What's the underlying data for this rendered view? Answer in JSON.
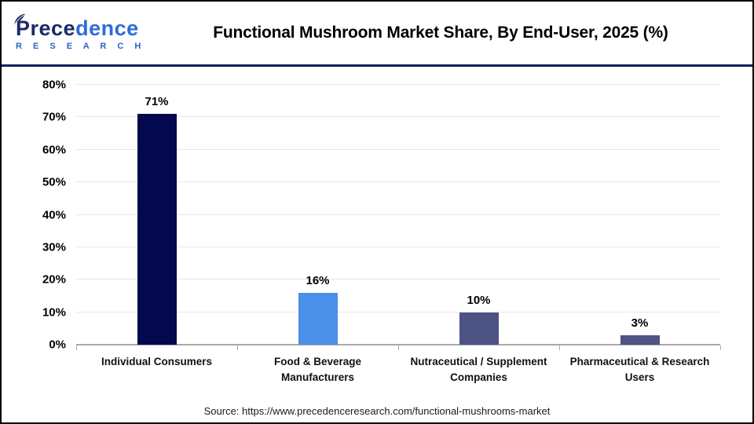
{
  "header": {
    "logo": {
      "brand_dark": "Prece",
      "brand_light": "dence",
      "sub": "R E S E A R C H"
    },
    "title": "Functional Mushroom Market Share, By End-User, 2025 (%)"
  },
  "chart_data": {
    "type": "bar",
    "title": "Functional Mushroom Market Share, By End-User, 2025 (%)",
    "categories": [
      "Individual Consumers",
      "Food & Beverage Manufacturers",
      "Nutraceutical / Supplement Companies",
      "Pharmaceutical & Research Users"
    ],
    "values": [
      71,
      16,
      10,
      3
    ],
    "value_labels": [
      "71%",
      "16%",
      "10%",
      "3%"
    ],
    "bar_colors": [
      "#04094f",
      "#4a90e8",
      "#4d5385",
      "#4d5385"
    ],
    "xlabel": "",
    "ylabel": "",
    "ylim": [
      0,
      80
    ],
    "yticks": [
      0,
      10,
      20,
      30,
      40,
      50,
      60,
      70,
      80
    ],
    "ytick_labels": [
      "0%",
      "10%",
      "20%",
      "30%",
      "40%",
      "50%",
      "60%",
      "70%",
      "80%"
    ],
    "grid": true,
    "legend": false
  },
  "footer": {
    "source": "Source: https://www.precedenceresearch.com/functional-mushrooms-market"
  },
  "colors": {
    "bar_navy": "#04094f",
    "bar_blue": "#4a90e8",
    "bar_slate": "#4d5385",
    "divider_navy": "#131f5b",
    "logo_navy": "#1c2a66",
    "logo_blue": "#2f6cd8",
    "gridline": "#e7e7e7",
    "axis_line": "#a9a9a9",
    "frame_border": "#000000"
  }
}
